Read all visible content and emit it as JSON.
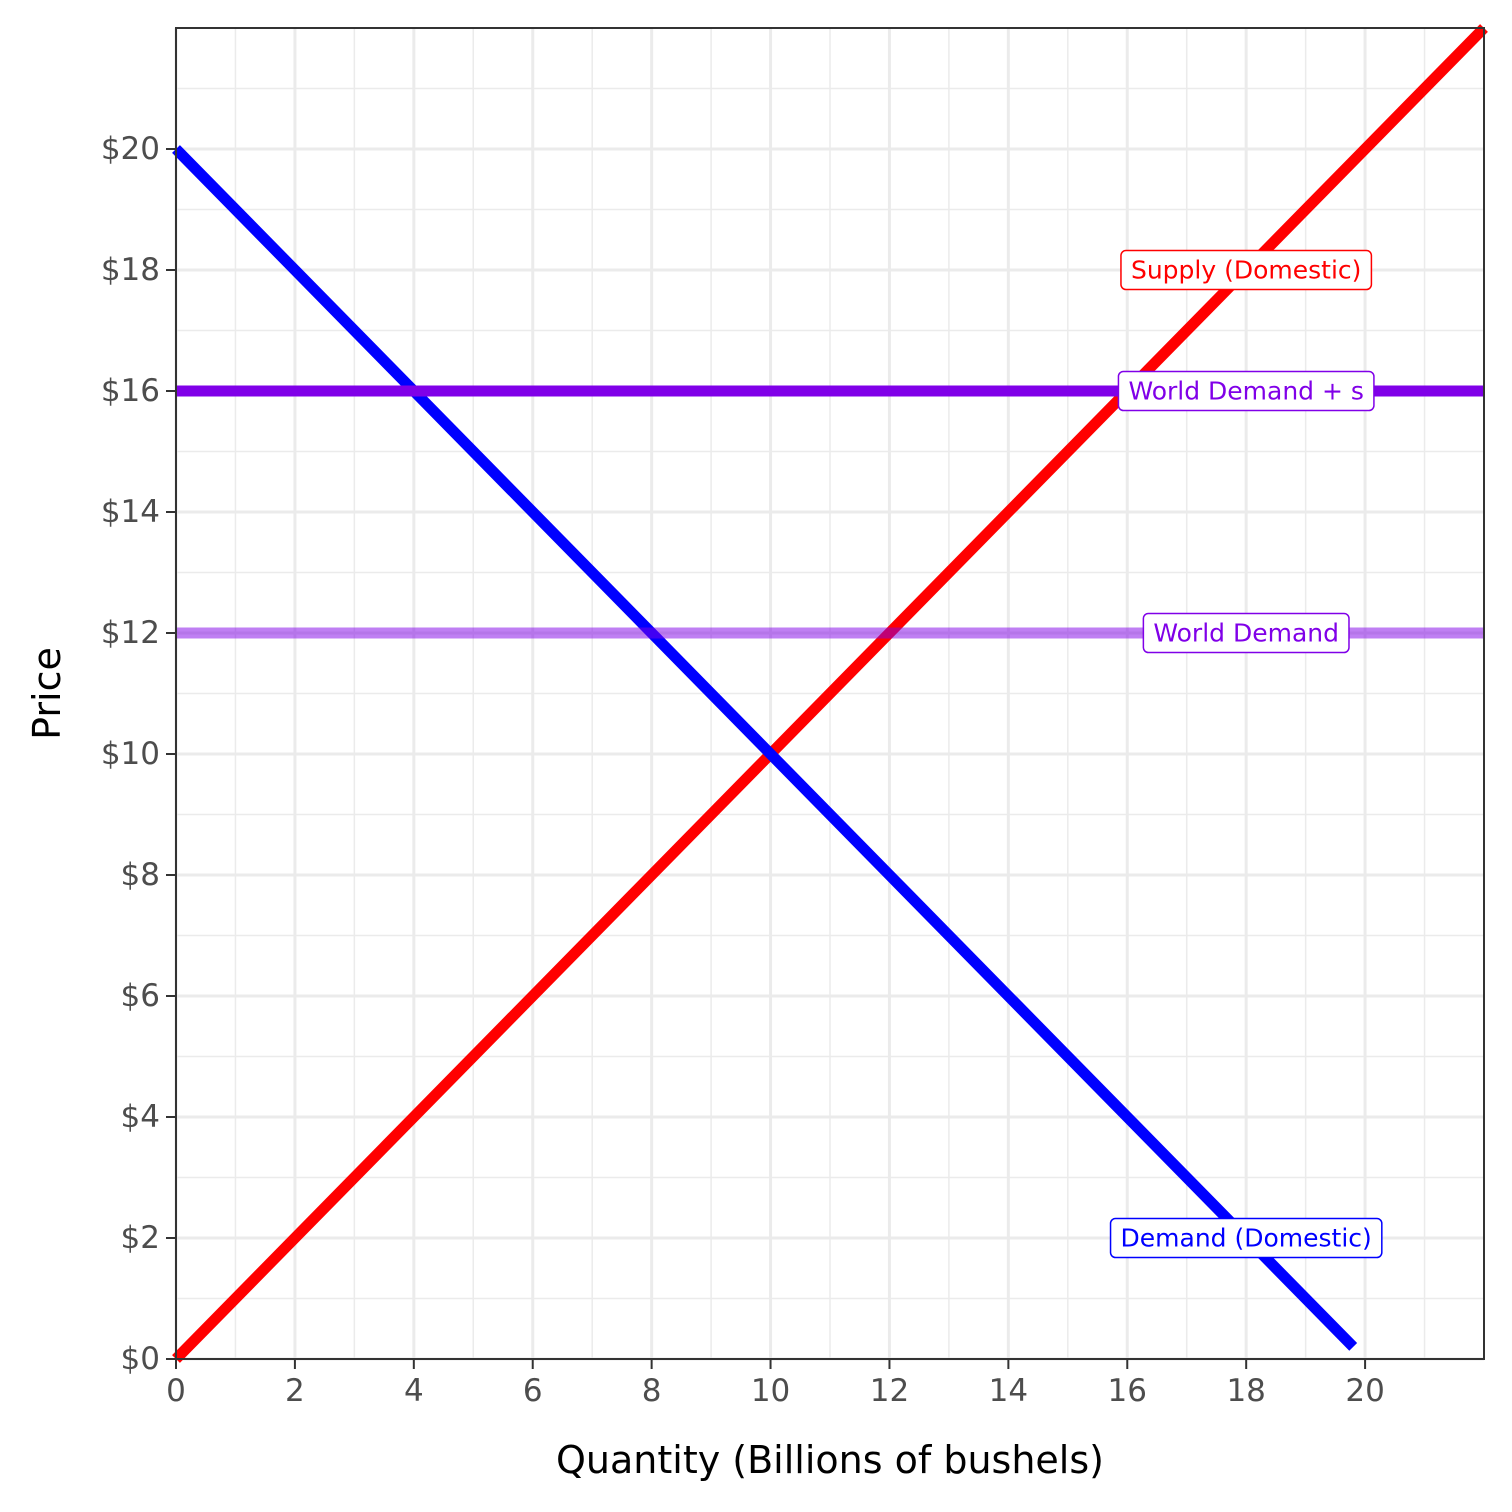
{
  "chart_data": {
    "type": "line",
    "xlabel": "Quantity (Billions of bushels)",
    "ylabel": "Price",
    "xlim": [
      0,
      22
    ],
    "ylim": [
      0,
      22
    ],
    "x_ticks": [
      0,
      2,
      4,
      6,
      8,
      10,
      12,
      14,
      16,
      18,
      20
    ],
    "x_tick_labels": [
      "0",
      "2",
      "4",
      "6",
      "8",
      "10",
      "12",
      "14",
      "16",
      "18",
      "20"
    ],
    "y_ticks": [
      0,
      2,
      4,
      6,
      8,
      10,
      12,
      14,
      16,
      18,
      20
    ],
    "y_tick_labels": [
      "$0",
      "$2",
      "$4",
      "$6",
      "$8",
      "$10",
      "$12",
      "$14",
      "$16",
      "$18",
      "$20"
    ],
    "grid": true,
    "legend": "none",
    "series": [
      {
        "name": "Supply (Domestic)",
        "color": "#ff0000",
        "opacity": 1,
        "x": [
          0,
          22
        ],
        "y": [
          0,
          22
        ],
        "label_at": [
          18,
          18
        ]
      },
      {
        "name": "Demand (Domestic)",
        "color": "#0000ff",
        "opacity": 1,
        "x": [
          0,
          19.8
        ],
        "y": [
          20,
          0.2
        ],
        "label_at": [
          18,
          2
        ]
      },
      {
        "name": "World Demand + s",
        "color": "#8000e8",
        "opacity": 1,
        "x": [
          0,
          22
        ],
        "y": [
          16,
          16
        ],
        "label_at": [
          18,
          16
        ]
      },
      {
        "name": "World Demand",
        "color": "#8000e8",
        "opacity": 0.5,
        "x": [
          0,
          22
        ],
        "y": [
          12,
          12
        ],
        "label_at": [
          18,
          12
        ]
      }
    ]
  }
}
